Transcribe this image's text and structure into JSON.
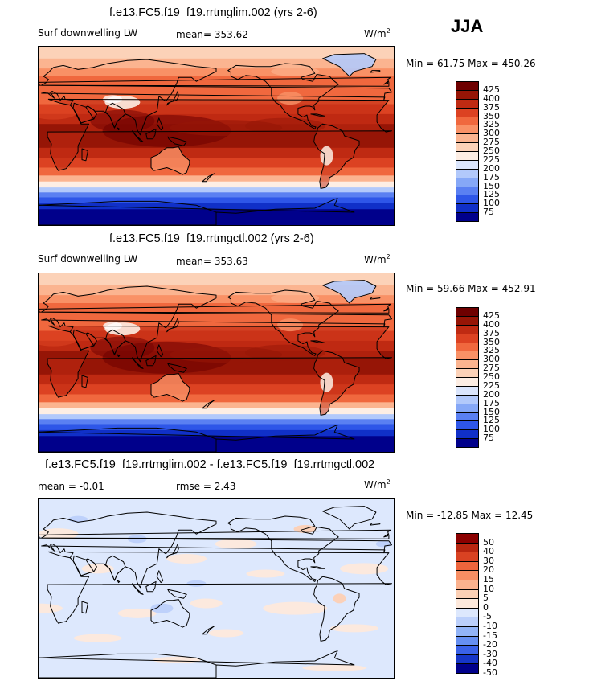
{
  "season": "JJA",
  "palettes": {
    "abs": [
      "#00008b",
      "#1030c8",
      "#2e56e8",
      "#5a80f2",
      "#86a8f7",
      "#b2c9fb",
      "#dbe6fd",
      "#fdeee4",
      "#fcd2b8",
      "#fbb490",
      "#f99166",
      "#f0683e",
      "#dc4222",
      "#bf2a12",
      "#961506",
      "#6e0000"
    ],
    "diff": [
      "#00008b",
      "#1636c8",
      "#3a62e8",
      "#6690f2",
      "#92b4f7",
      "#bcd0fb",
      "#dde8fd",
      "#fde9dc",
      "#fcd0b5",
      "#fbb28e",
      "#f78e63",
      "#ee653c",
      "#d94222",
      "#b82610",
      "#8b0000"
    ]
  },
  "panels": [
    {
      "title": "f.e13.FC5.f19_f19.rrtmglim.002 (yrs 2-6)",
      "left_label": "Surf downwelling LW",
      "mean_text": "mean=  353.62",
      "units": "W/m",
      "units_sup": "2",
      "minmax": "Min =   61.75  Max  =  450.26",
      "field": "abs"
    },
    {
      "title": "f.e13.FC5.f19_f19.rrtmgctl.002 (yrs 2-6)",
      "left_label": "Surf downwelling LW",
      "mean_text": "mean=  353.63",
      "units": "W/m",
      "units_sup": "2",
      "minmax": "Min =   59.66  Max  =  452.91",
      "field": "abs"
    },
    {
      "title": "f.e13.FC5.f19_f19.rrtmglim.002 - f.e13.FC5.f19_f19.rrtmgctl.002",
      "left_label": "mean =   -0.01",
      "mean_text": "rmse =     2.43",
      "units": "W/m",
      "units_sup": "2",
      "minmax": "Min = -12.85  Max  =   12.45",
      "field": "diff"
    }
  ],
  "chart_data": [
    {
      "type": "heatmap",
      "title": "f.e13.FC5.f19_f19.rrtmglim.002 (yrs 2-6)",
      "variable": "Surf downwelling LW",
      "units": "W/m^2",
      "mean": 353.62,
      "min": 61.75,
      "max": 450.26,
      "colorbar_ticks": [
        "425",
        "400",
        "375",
        "350",
        "325",
        "300",
        "275",
        "250",
        "225",
        "200",
        "175",
        "150",
        "125",
        "100",
        "75"
      ]
    },
    {
      "type": "heatmap",
      "title": "f.e13.FC5.f19_f19.rrtmgctl.002 (yrs 2-6)",
      "variable": "Surf downwelling LW",
      "units": "W/m^2",
      "mean": 353.63,
      "min": 59.66,
      "max": 452.91,
      "colorbar_ticks": [
        "425",
        "400",
        "375",
        "350",
        "325",
        "300",
        "275",
        "250",
        "225",
        "200",
        "175",
        "150",
        "125",
        "100",
        "75"
      ]
    },
    {
      "type": "heatmap",
      "title": "f.e13.FC5.f19_f19.rrtmglim.002 - f.e13.FC5.f19_f19.rrtmgctl.002",
      "units": "W/m^2",
      "mean": -0.01,
      "rmse": 2.43,
      "min": -12.85,
      "max": 12.45,
      "colorbar_ticks": [
        "50",
        "40",
        "30",
        "20",
        "15",
        "10",
        "5",
        "0",
        "-5",
        "-10",
        "-15",
        "-20",
        "-30",
        "-40",
        "-50"
      ]
    }
  ]
}
